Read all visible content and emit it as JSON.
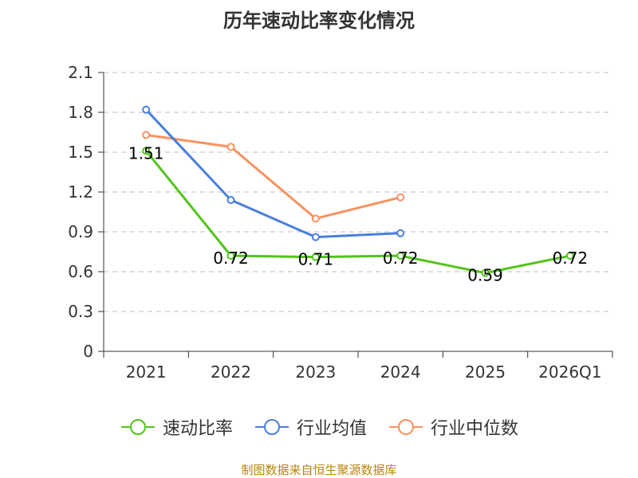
{
  "chart_data": {
    "type": "line",
    "title": "历年速动比率变化情况",
    "categories": [
      "2021",
      "2022",
      "2023",
      "2024",
      "2025",
      "2026Q1"
    ],
    "yticks": [
      "0",
      "0.3",
      "0.6",
      "0.9",
      "1.2",
      "1.5",
      "1.8",
      "2.1"
    ],
    "ylim": [
      0,
      2.1
    ],
    "grid": true,
    "series": [
      {
        "name": "速动比率",
        "color": "#52c41a",
        "values": [
          1.51,
          0.72,
          0.71,
          0.72,
          0.59,
          0.72
        ],
        "labels": [
          "1.51",
          "0.72",
          "0.71",
          "0.72",
          "0.59",
          "0.72"
        ]
      },
      {
        "name": "行业均值",
        "color": "#4a7fdc",
        "values": [
          1.82,
          1.14,
          0.86,
          0.89,
          null,
          null
        ]
      },
      {
        "name": "行业中位数",
        "color": "#f79360",
        "values": [
          1.63,
          1.54,
          1.0,
          1.16,
          null,
          null
        ]
      }
    ],
    "legend_position": "bottom"
  },
  "footer": {
    "source": "制图数据来自恒生聚源数据库"
  }
}
